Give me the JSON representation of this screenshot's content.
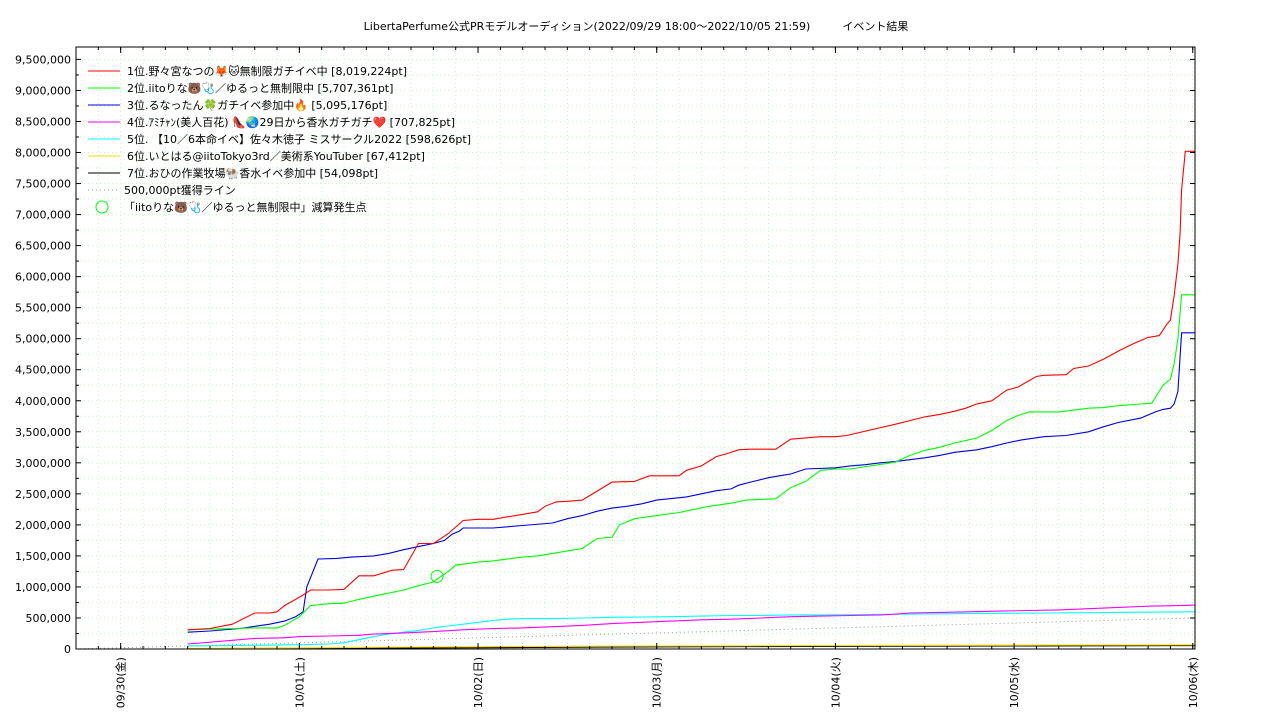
{
  "chart_data": {
    "type": "line",
    "title": "LibertaPerfume公式PRモデルオーディション(2022/09/29 18:00〜2022/10/05 21:59)",
    "subtitle": "イベント結果",
    "xlabel": "",
    "ylabel": "",
    "ylim": [
      0,
      9700000
    ],
    "xlim": [
      "09/29 18:00",
      "10/06 00:18"
    ],
    "grid": true,
    "legend_position": "top-left",
    "y_ticks": [
      "0",
      "500,000",
      "1,000,000",
      "1,500,000",
      "2,000,000",
      "2,500,000",
      "3,000,000",
      "3,500,000",
      "4,000,000",
      "4,500,000",
      "5,000,000",
      "5,500,000",
      "6,000,000",
      "6,500,000",
      "7,000,000",
      "7,500,000",
      "8,000,000",
      "8,500,000",
      "9,000,000",
      "9,500,000"
    ],
    "x_ticks": [
      "09/30(金)",
      "10/01(土)",
      "10/02(日)",
      "10/03(月)",
      "10/04(火)",
      "10/05(水)",
      "10/06(木)"
    ],
    "x_tick_hours": [
      6,
      30,
      54,
      78,
      102,
      126,
      150
    ],
    "series": [
      {
        "name": "1位.野々宮なつの🦊🐱無制限ガチイベ中 [8,019,224pt]",
        "color": "#ff0000",
        "hours": [
          15,
          18,
          21,
          24,
          26,
          27,
          28,
          29.5,
          30.5,
          31.5,
          34,
          36,
          38,
          40,
          42.5,
          44,
          46,
          48,
          50,
          52,
          54,
          56,
          62,
          63,
          64.5,
          66,
          68,
          72,
          75,
          77,
          81,
          82,
          84,
          86,
          87.5,
          89,
          90.5,
          94,
          96,
          100,
          102,
          103.5,
          110,
          112,
          114,
          116,
          118,
          119.5,
          121,
          123,
          125,
          126.5,
          129,
          130,
          133,
          134,
          136,
          138,
          140,
          142,
          144,
          145.5,
          146.5,
          147,
          147.5,
          148,
          148.3,
          148.5,
          149,
          150.3
        ],
        "values": [
          310000,
          330000,
          400000,
          580000,
          580000,
          600000,
          700000,
          800000,
          870000,
          950000,
          950000,
          960000,
          1180000,
          1180000,
          1270000,
          1280000,
          1700000,
          1700000,
          1860000,
          2070000,
          2090000,
          2090000,
          2210000,
          2300000,
          2370000,
          2380000,
          2400000,
          2690000,
          2700000,
          2790000,
          2790000,
          2880000,
          2950000,
          3100000,
          3150000,
          3210000,
          3220000,
          3220000,
          3380000,
          3420000,
          3420000,
          3440000,
          3620000,
          3680000,
          3740000,
          3780000,
          3830000,
          3880000,
          3950000,
          4000000,
          4170000,
          4220000,
          4390000,
          4410000,
          4420000,
          4520000,
          4560000,
          4670000,
          4800000,
          4920000,
          5020000,
          5050000,
          5230000,
          5300000,
          5700000,
          6200000,
          6700000,
          7400000,
          8019224,
          8019224
        ]
      },
      {
        "name": "2位.iitoりな🐻🩺／ゆるっと無制限中 [5,707,361pt]",
        "color": "#00ff00",
        "hours": [
          15,
          18,
          21,
          24,
          27,
          28,
          30,
          31.5,
          34,
          36,
          38,
          40,
          42,
          44,
          46,
          48,
          49,
          50,
          51,
          54,
          56,
          60,
          62,
          66,
          68,
          70,
          72,
          73,
          75,
          78,
          81,
          83,
          85,
          88,
          90,
          94,
          96,
          98,
          100,
          102,
          104,
          110,
          112,
          114,
          116,
          118,
          121,
          123,
          125,
          126.5,
          128,
          132,
          134,
          136,
          138,
          140,
          142,
          144.5,
          146,
          147,
          147.5,
          148,
          148.5,
          150.3
        ],
        "values": [
          310000,
          320000,
          330000,
          340000,
          340000,
          380000,
          520000,
          700000,
          730000,
          740000,
          800000,
          850000,
          900000,
          950000,
          1020000,
          1080000,
          1170000,
          1250000,
          1350000,
          1400000,
          1420000,
          1480000,
          1500000,
          1580000,
          1620000,
          1780000,
          1800000,
          2000000,
          2100000,
          2150000,
          2200000,
          2250000,
          2300000,
          2350000,
          2400000,
          2420000,
          2600000,
          2700000,
          2880000,
          2900000,
          2900000,
          3010000,
          3120000,
          3200000,
          3250000,
          3320000,
          3400000,
          3520000,
          3680000,
          3760000,
          3820000,
          3820000,
          3850000,
          3880000,
          3890000,
          3920000,
          3940000,
          3960000,
          4250000,
          4350000,
          4600000,
          5000000,
          5707361,
          5707361
        ]
      },
      {
        "name": "3位.るなったん🍀ガチイベ参加中🔥 [5,095,176pt]",
        "color": "#0000dd",
        "hours": [
          15,
          18,
          22,
          26,
          28,
          29.5,
          30.5,
          31,
          32.5,
          35,
          37,
          40,
          42,
          44,
          46,
          48,
          49.5,
          50.5,
          51.5,
          52,
          56,
          60,
          64,
          66,
          68,
          70,
          72,
          74,
          76,
          78,
          82,
          84,
          86,
          88,
          89,
          91,
          93,
          95,
          96,
          98,
          102,
          104,
          106,
          108,
          110,
          112,
          114,
          116,
          118,
          121,
          123,
          125,
          127,
          130,
          133,
          136,
          138,
          140,
          143,
          145,
          146,
          147,
          147.5,
          148,
          148.5,
          150.3
        ],
        "values": [
          270000,
          290000,
          330000,
          400000,
          450000,
          520000,
          600000,
          1000000,
          1450000,
          1460000,
          1480000,
          1500000,
          1540000,
          1600000,
          1650000,
          1700000,
          1750000,
          1850000,
          1900000,
          1950000,
          1950000,
          1990000,
          2030000,
          2100000,
          2150000,
          2220000,
          2270000,
          2300000,
          2340000,
          2400000,
          2450000,
          2500000,
          2550000,
          2580000,
          2640000,
          2700000,
          2760000,
          2800000,
          2820000,
          2900000,
          2920000,
          2950000,
          2970000,
          3000000,
          3020000,
          3050000,
          3080000,
          3120000,
          3170000,
          3210000,
          3260000,
          3320000,
          3370000,
          3420000,
          3440000,
          3500000,
          3580000,
          3650000,
          3720000,
          3820000,
          3860000,
          3880000,
          3950000,
          4150000,
          5095176,
          5095176
        ]
      },
      {
        "name": "4位.ｱﾐﾁｬﾝ(美人百花) 👠🌏29日から香水ガチガチ❤️ [707,825pt]",
        "color": "#ff00ff",
        "hours": [
          15,
          20,
          24,
          28,
          30,
          34,
          38,
          40,
          44,
          48,
          52,
          56,
          60,
          64,
          68,
          72,
          76,
          80,
          84,
          88,
          92,
          96,
          100,
          104,
          108,
          110,
          112,
          116,
          120,
          124,
          128,
          132,
          136,
          140,
          144,
          148,
          150.3
        ],
        "values": [
          80000,
          130000,
          170000,
          180000,
          200000,
          210000,
          220000,
          240000,
          260000,
          280000,
          310000,
          330000,
          340000,
          360000,
          380000,
          410000,
          430000,
          450000,
          470000,
          480000,
          500000,
          520000,
          530000,
          540000,
          550000,
          560000,
          580000,
          590000,
          600000,
          610000,
          620000,
          630000,
          650000,
          670000,
          690000,
          700000,
          707825
        ]
      },
      {
        "name": "5位. 【10／6本命イベ】佐々木徳子 ミスサークル2022 [598,626pt]",
        "color": "#00ffff",
        "hours": [
          15,
          24,
          30,
          34,
          36,
          38,
          40,
          42,
          44,
          46,
          48,
          50,
          52,
          54,
          56,
          58,
          60,
          64,
          68,
          72,
          76,
          80,
          84,
          88,
          92,
          96,
          100,
          110,
          120,
          130,
          140,
          150.3
        ],
        "values": [
          50000,
          60000,
          70000,
          80000,
          100000,
          150000,
          200000,
          240000,
          270000,
          300000,
          340000,
          370000,
          400000,
          430000,
          460000,
          480000,
          490000,
          490000,
          500000,
          510000,
          515000,
          520000,
          530000,
          540000,
          540000,
          550000,
          550000,
          560000,
          570000,
          580000,
          590000,
          598626
        ]
      },
      {
        "name": "6位.いとはる@iitoTokyo3rd／美術系YouTuber [67,412pt]",
        "color": "#ffdd00",
        "hours": [
          15,
          30,
          50,
          70,
          90,
          110,
          130,
          150.3
        ],
        "values": [
          10000,
          20000,
          35000,
          45000,
          52000,
          58000,
          63000,
          67412
        ]
      },
      {
        "name": "7位.おひの作業牧場🐏香水イベ参加中 [54,098pt]",
        "color": "#000000",
        "hours": [
          15,
          30,
          50,
          70,
          90,
          110,
          130,
          150.3
        ],
        "values": [
          5000,
          10000,
          20000,
          30000,
          38000,
          45000,
          50000,
          54098
        ]
      }
    ],
    "reference_line": {
      "name": "500,000pt獲得ライン",
      "color": "#999999",
      "hours": [
        0,
        150.3
      ],
      "values": [
        0,
        500000
      ]
    },
    "markers": [
      {
        "name": "「iitoりな🐻🩺／ゆるっと無制限中」減算発生点",
        "color": "#00ff00",
        "hour": 48.5,
        "value": 1170000
      }
    ]
  }
}
